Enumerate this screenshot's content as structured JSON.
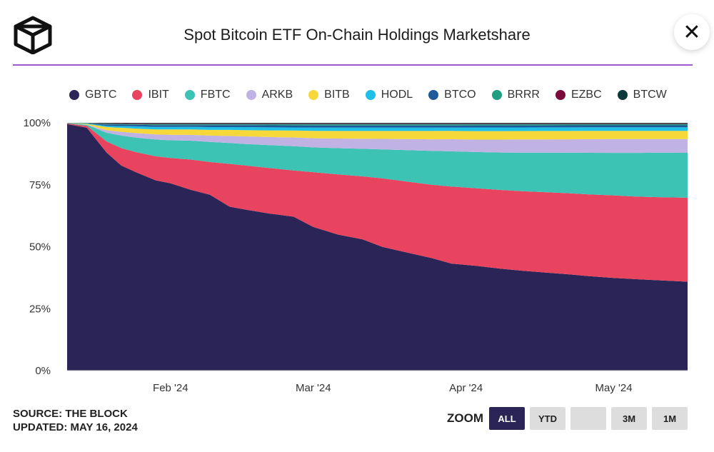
{
  "header": {
    "title": "Spot Bitcoin ETF On-Chain Holdings Marketshare",
    "close_label": "✕"
  },
  "footer": {
    "source": "SOURCE: THE BLOCK",
    "updated": "UPDATED: MAY 16, 2024"
  },
  "zoom": {
    "label": "ZOOM",
    "buttons": [
      {
        "label": "ALL",
        "active": true
      },
      {
        "label": "YTD",
        "active": false
      },
      {
        "label": "",
        "active": false
      },
      {
        "label": "3M",
        "active": false
      },
      {
        "label": "1M",
        "active": false
      }
    ]
  },
  "chart_data": {
    "type": "area",
    "stacked": true,
    "legend_position": "top",
    "grid": false,
    "ylim": [
      0,
      100
    ],
    "y_ticks": [
      "0%",
      "25%",
      "50%",
      "75%",
      "100%"
    ],
    "x_ticks": [
      "Feb '24",
      "Mar '24",
      "Apr '24",
      "May '24"
    ],
    "x": [
      "2024-01-11",
      "2024-01-15",
      "2024-01-19",
      "2024-01-22",
      "2024-01-25",
      "2024-01-29",
      "2024-02-01",
      "2024-02-05",
      "2024-02-09",
      "2024-02-13",
      "2024-02-16",
      "2024-02-21",
      "2024-02-26",
      "2024-03-01",
      "2024-03-06",
      "2024-03-11",
      "2024-03-15",
      "2024-03-20",
      "2024-03-25",
      "2024-03-29",
      "2024-04-03",
      "2024-04-08",
      "2024-04-12",
      "2024-04-17",
      "2024-04-22",
      "2024-04-26",
      "2024-05-01",
      "2024-05-06",
      "2024-05-10",
      "2024-05-16"
    ],
    "series": [
      {
        "name": "GBTC",
        "color": "#2a2556",
        "values": [
          99.5,
          98,
          88,
          82,
          79,
          75,
          74,
          72,
          70,
          65,
          64,
          62,
          60,
          55,
          52,
          50,
          47,
          45,
          43,
          41,
          40.5,
          39.5,
          39,
          38.5,
          38,
          37.5,
          37,
          36.5,
          36.2,
          35.6
        ]
      },
      {
        "name": "IBIT",
        "color": "#e8435f",
        "values": [
          0.3,
          0.8,
          4.5,
          7,
          8,
          9.5,
          10,
          12,
          13,
          17,
          17.5,
          18,
          18,
          21,
          23,
          24,
          26,
          27,
          28,
          29.5,
          30,
          30.5,
          31,
          31.5,
          32,
          32.5,
          33,
          33,
          33.3,
          33.6
        ]
      },
      {
        "name": "FBTC",
        "color": "#3cc3b3",
        "values": [
          0.1,
          0.4,
          3.5,
          5,
          5.8,
          6.6,
          7,
          7.5,
          8,
          8.3,
          8.5,
          9,
          9.5,
          9.5,
          10,
          10.5,
          11,
          12,
          13,
          13.5,
          14,
          14.5,
          15,
          15.5,
          16,
          16.5,
          17,
          17.5,
          17.8,
          18
        ]
      },
      {
        "name": "ARKB",
        "color": "#c0b3e3",
        "values": [
          0,
          0.1,
          1,
          1.5,
          1.8,
          2,
          2.2,
          2.3,
          2.5,
          2.8,
          3,
          3.2,
          3.4,
          3.5,
          3.7,
          3.8,
          4,
          4.2,
          4.4,
          4.6,
          4.8,
          5,
          5.1,
          5.2,
          5.3,
          5.4,
          5.5,
          5.5,
          5.5,
          5.5
        ]
      },
      {
        "name": "BITB",
        "color": "#f7d83a",
        "values": [
          0,
          0.3,
          1.3,
          1.6,
          1.8,
          2,
          2.1,
          2.2,
          2.3,
          2.4,
          2.5,
          2.6,
          2.7,
          2.8,
          2.9,
          3,
          3,
          3.1,
          3.2,
          3.2,
          3.3,
          3.3,
          3.3,
          3.3,
          3.3,
          3.3,
          3.3,
          3.3,
          3.3,
          3.3
        ]
      },
      {
        "name": "HODL",
        "color": "#1ec0e8",
        "values": [
          0,
          0.1,
          0.5,
          0.7,
          0.9,
          1,
          1,
          1,
          1.1,
          1.1,
          1.2,
          1.2,
          1.2,
          1.3,
          1.3,
          1.3,
          1.3,
          1.3,
          1.3,
          1.3,
          1.4,
          1.4,
          1.4,
          1.4,
          1.4,
          1.4,
          1.4,
          1.4,
          1.4,
          1.4
        ]
      },
      {
        "name": "BTCO",
        "color": "#1d5a99",
        "values": [
          0,
          0.1,
          0.5,
          0.6,
          0.6,
          0.7,
          0.7,
          0.7,
          0.8,
          0.8,
          0.8,
          0.8,
          0.8,
          0.8,
          0.8,
          0.8,
          0.8,
          0.8,
          0.8,
          0.8,
          0.8,
          0.8,
          0.8,
          0.8,
          0.8,
          0.8,
          0.8,
          0.8,
          0.8,
          0.8
        ]
      },
      {
        "name": "BRRR",
        "color": "#1f9e84",
        "values": [
          0,
          0.1,
          0.3,
          0.3,
          0.3,
          0.4,
          0.4,
          0.4,
          0.4,
          0.4,
          0.4,
          0.5,
          0.5,
          0.5,
          0.5,
          0.5,
          0.5,
          0.5,
          0.5,
          0.5,
          0.5,
          0.5,
          0.5,
          0.5,
          0.5,
          0.5,
          0.5,
          0.5,
          0.5,
          0.5
        ]
      },
      {
        "name": "EZBC",
        "color": "#7a0a3c",
        "values": [
          0,
          0.05,
          0.2,
          0.3,
          0.3,
          0.3,
          0.3,
          0.3,
          0.3,
          0.3,
          0.3,
          0.3,
          0.3,
          0.3,
          0.3,
          0.3,
          0.3,
          0.3,
          0.3,
          0.3,
          0.3,
          0.3,
          0.3,
          0.3,
          0.3,
          0.3,
          0.3,
          0.3,
          0.3,
          0.3
        ]
      },
      {
        "name": "BTCW",
        "color": "#0c3a3a",
        "values": [
          0.1,
          0.05,
          0.2,
          0.1,
          0.2,
          0.2,
          0.2,
          0.2,
          0.2,
          0.2,
          0.2,
          0.2,
          0.2,
          0.2,
          0.2,
          0.2,
          0.2,
          0.2,
          0.2,
          0.2,
          0.2,
          0.2,
          0.2,
          0.2,
          0.2,
          0.2,
          0.2,
          0.2,
          0.2,
          0.2
        ]
      }
    ]
  }
}
